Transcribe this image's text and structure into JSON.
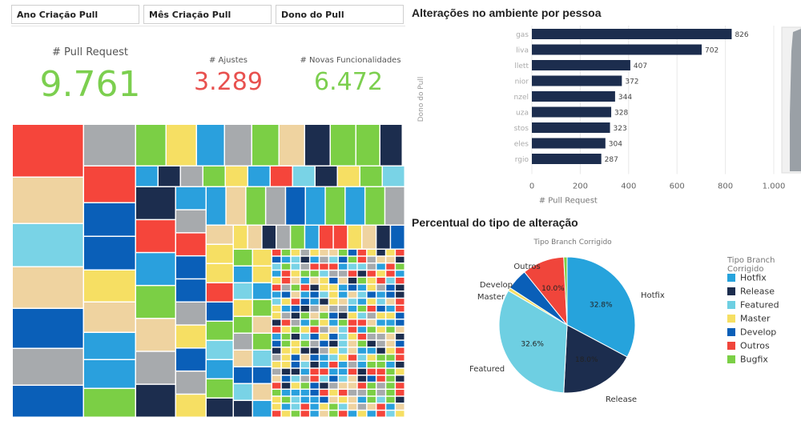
{
  "filters": [
    "Ano Criação Pull",
    "Mês Criação Pull",
    "Dono do Pull"
  ],
  "kpis": [
    {
      "label": "# Pull Request",
      "value": "9.761",
      "color": "#7ccf4f"
    },
    {
      "label": "# Ajustes",
      "value": "3.289",
      "color": "#e8514f"
    },
    {
      "label": "# Novas Funcionalidades",
      "value": "6.472",
      "color": "#7ccf4f"
    }
  ],
  "palette": [
    "#f5453b",
    "#a7aaad",
    "#7bcf45",
    "#f6df63",
    "#2aa0dd",
    "#1c2d4e",
    "#efd3a0",
    "#79d3e6",
    "#0a5fb8"
  ],
  "bar_chart": {
    "title": "Alterações no ambiente por pessoa",
    "color": "#1c2d4e",
    "chart_data": {
      "type": "bar",
      "orientation": "horizontal",
      "categories": [
        "gas",
        "liva",
        "llett",
        "nior",
        "nzel",
        "uza",
        "stos",
        "eles",
        "rgio"
      ],
      "values": [
        826,
        702,
        407,
        372,
        344,
        328,
        323,
        304,
        287
      ],
      "xlabel": "# Pull Request",
      "ylabel": "Dono do Pull",
      "xlim": [
        0,
        1000
      ],
      "xticks": [
        "0",
        "200",
        "400",
        "600",
        "800",
        "1.000"
      ],
      "grid": true
    }
  },
  "pie_chart": {
    "title": "Percentual do tipo de alteração",
    "subtitle": "Tipo Branch Corrigido",
    "legend_title": "Tipo Branch Corrigido",
    "chart_data": {
      "type": "pie",
      "labels": [
        "Hotfix",
        "Release",
        "Featured",
        "Master",
        "Develop",
        "Outros",
        "Bugfix"
      ],
      "values": [
        32.8,
        18.0,
        32.6,
        0.8,
        5.0,
        10.0,
        0.8
      ],
      "value_labels": [
        "32.8%",
        "18.0%",
        "32.6%",
        "",
        "",
        "10.0%",
        ""
      ],
      "colors": [
        "#26a3dc",
        "#1c2d4e",
        "#6ecfe2",
        "#f6df63",
        "#0a5fb8",
        "#f0453b",
        "#7bcf45"
      ],
      "legend_placement": "right"
    }
  }
}
